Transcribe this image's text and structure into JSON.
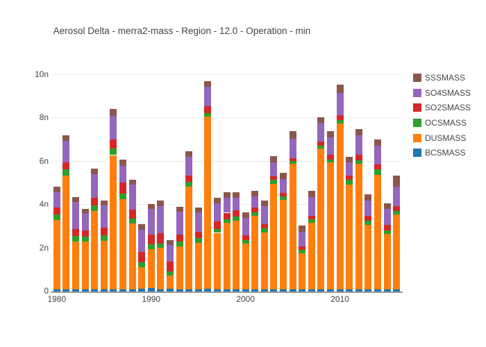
{
  "title": "Aerosol Delta - merra2-mass - Region - 12.0 - Operation - min",
  "legend": {
    "items": [
      {
        "label": "SSSMASS",
        "color": "#8c564b"
      },
      {
        "label": "SO4SMASS",
        "color": "#9467bd"
      },
      {
        "label": "SO2SMASS",
        "color": "#d62728"
      },
      {
        "label": "OCSMASS",
        "color": "#2ca02c"
      },
      {
        "label": "DUSMASS",
        "color": "#ff7f0e"
      },
      {
        "label": "BCSMASS",
        "color": "#1f77b4"
      }
    ]
  },
  "chart_data": {
    "type": "bar",
    "stacked": true,
    "title": "Aerosol Delta - merra2-mass - Region - 12.0 - Operation - min",
    "xlabel": "",
    "ylabel": "",
    "unit_prefix": "n",
    "grid": true,
    "legend_position": "right",
    "ylim_n": [
      0,
      10.4
    ],
    "ytick_values": [
      0,
      2,
      4,
      6,
      8,
      10
    ],
    "ytick_labels": [
      "0",
      "2n",
      "4n",
      "6n",
      "8n",
      "10n"
    ],
    "xtick_years": [
      1980,
      1990,
      2000,
      2010
    ],
    "xtick_labels": [
      "1980",
      "1990",
      "2000",
      "2010"
    ],
    "x_years": [
      1980,
      1981,
      1982,
      1983,
      1984,
      1985,
      1986,
      1987,
      1988,
      1989,
      1990,
      1991,
      1992,
      1993,
      1994,
      1995,
      1996,
      1997,
      1998,
      1999,
      2000,
      2001,
      2002,
      2003,
      2004,
      2005,
      2006,
      2007,
      2008,
      2009,
      2010,
      2011,
      2012,
      2013,
      2014,
      2015,
      2016
    ],
    "series_bottom_to_top": [
      {
        "name": "BCSMASS",
        "color": "#1f77b4",
        "values_n": [
          0.1,
          0.1,
          0.1,
          0.1,
          0.1,
          0.1,
          0.1,
          0.1,
          0.1,
          0.13,
          0.15,
          0.1,
          0.13,
          0.1,
          0.1,
          0.1,
          0.12,
          0.1,
          0.1,
          0.1,
          0.1,
          0.1,
          0.1,
          0.1,
          0.1,
          0.1,
          0.1,
          0.1,
          0.1,
          0.1,
          0.1,
          0.1,
          0.1,
          0.1,
          0.1,
          0.1,
          0.1
        ]
      },
      {
        "name": "DUSMASS",
        "color": "#ff7f0e",
        "values_n": [
          3.2,
          5.25,
          2.22,
          2.2,
          3.62,
          2.25,
          6.2,
          4.15,
          3.04,
          0.99,
          1.82,
          1.91,
          0.62,
          1.99,
          4.73,
          2.16,
          7.95,
          2.61,
          3.08,
          3.18,
          2.1,
          3.38,
          2.63,
          4.88,
          4.13,
          5.8,
          1.68,
          3.09,
          6.5,
          5.85,
          7.65,
          4.85,
          5.8,
          2.98,
          5.3,
          2.55,
          3.47
        ]
      },
      {
        "name": "OCSMASS",
        "color": "#2ca02c",
        "values_n": [
          0.26,
          0.28,
          0.26,
          0.24,
          0.27,
          0.26,
          0.3,
          0.28,
          0.24,
          0.24,
          0.21,
          0.21,
          0.19,
          0.22,
          0.22,
          0.21,
          0.18,
          0.17,
          0.17,
          0.18,
          0.17,
          0.18,
          0.2,
          0.18,
          0.17,
          0.13,
          0.16,
          0.15,
          0.12,
          0.15,
          0.16,
          0.2,
          0.17,
          0.2,
          0.24,
          0.17,
          0.14
        ]
      },
      {
        "name": "SO2SMASS",
        "color": "#d62728",
        "values_n": [
          0.32,
          0.34,
          0.3,
          0.28,
          0.34,
          0.33,
          0.42,
          0.5,
          0.4,
          0.48,
          0.46,
          0.47,
          0.45,
          0.32,
          0.32,
          0.3,
          0.3,
          0.36,
          0.29,
          0.29,
          0.22,
          0.23,
          0.19,
          0.15,
          0.16,
          0.13,
          0.15,
          0.14,
          0.2,
          0.22,
          0.22,
          0.22,
          0.24,
          0.23,
          0.22,
          0.25,
          0.22
        ]
      },
      {
        "name": "SO4SMASS",
        "color": "#9467bd",
        "values_n": [
          0.72,
          0.98,
          1.25,
          0.8,
          1.08,
          1.04,
          1.1,
          0.77,
          1.16,
          1.02,
          1.17,
          1.26,
          0.75,
          1.05,
          0.85,
          0.89,
          0.9,
          0.84,
          0.7,
          0.57,
          0.8,
          0.51,
          0.82,
          0.64,
          0.64,
          0.89,
          0.68,
          0.89,
          0.88,
          0.8,
          1.05,
          0.6,
          0.9,
          0.7,
          0.87,
          0.75,
          0.91
        ]
      },
      {
        "name": "SSSMASS",
        "color": "#8c564b",
        "values_n": [
          0.25,
          0.25,
          0.24,
          0.21,
          0.26,
          0.23,
          0.3,
          0.28,
          0.21,
          0.26,
          0.24,
          0.24,
          0.23,
          0.23,
          0.26,
          0.23,
          0.28,
          0.24,
          0.26,
          0.26,
          0.25,
          0.26,
          0.25,
          0.3,
          0.28,
          0.36,
          0.28,
          0.29,
          0.26,
          0.3,
          0.37,
          0.25,
          0.3,
          0.28,
          0.29,
          0.26,
          0.5
        ]
      }
    ]
  }
}
